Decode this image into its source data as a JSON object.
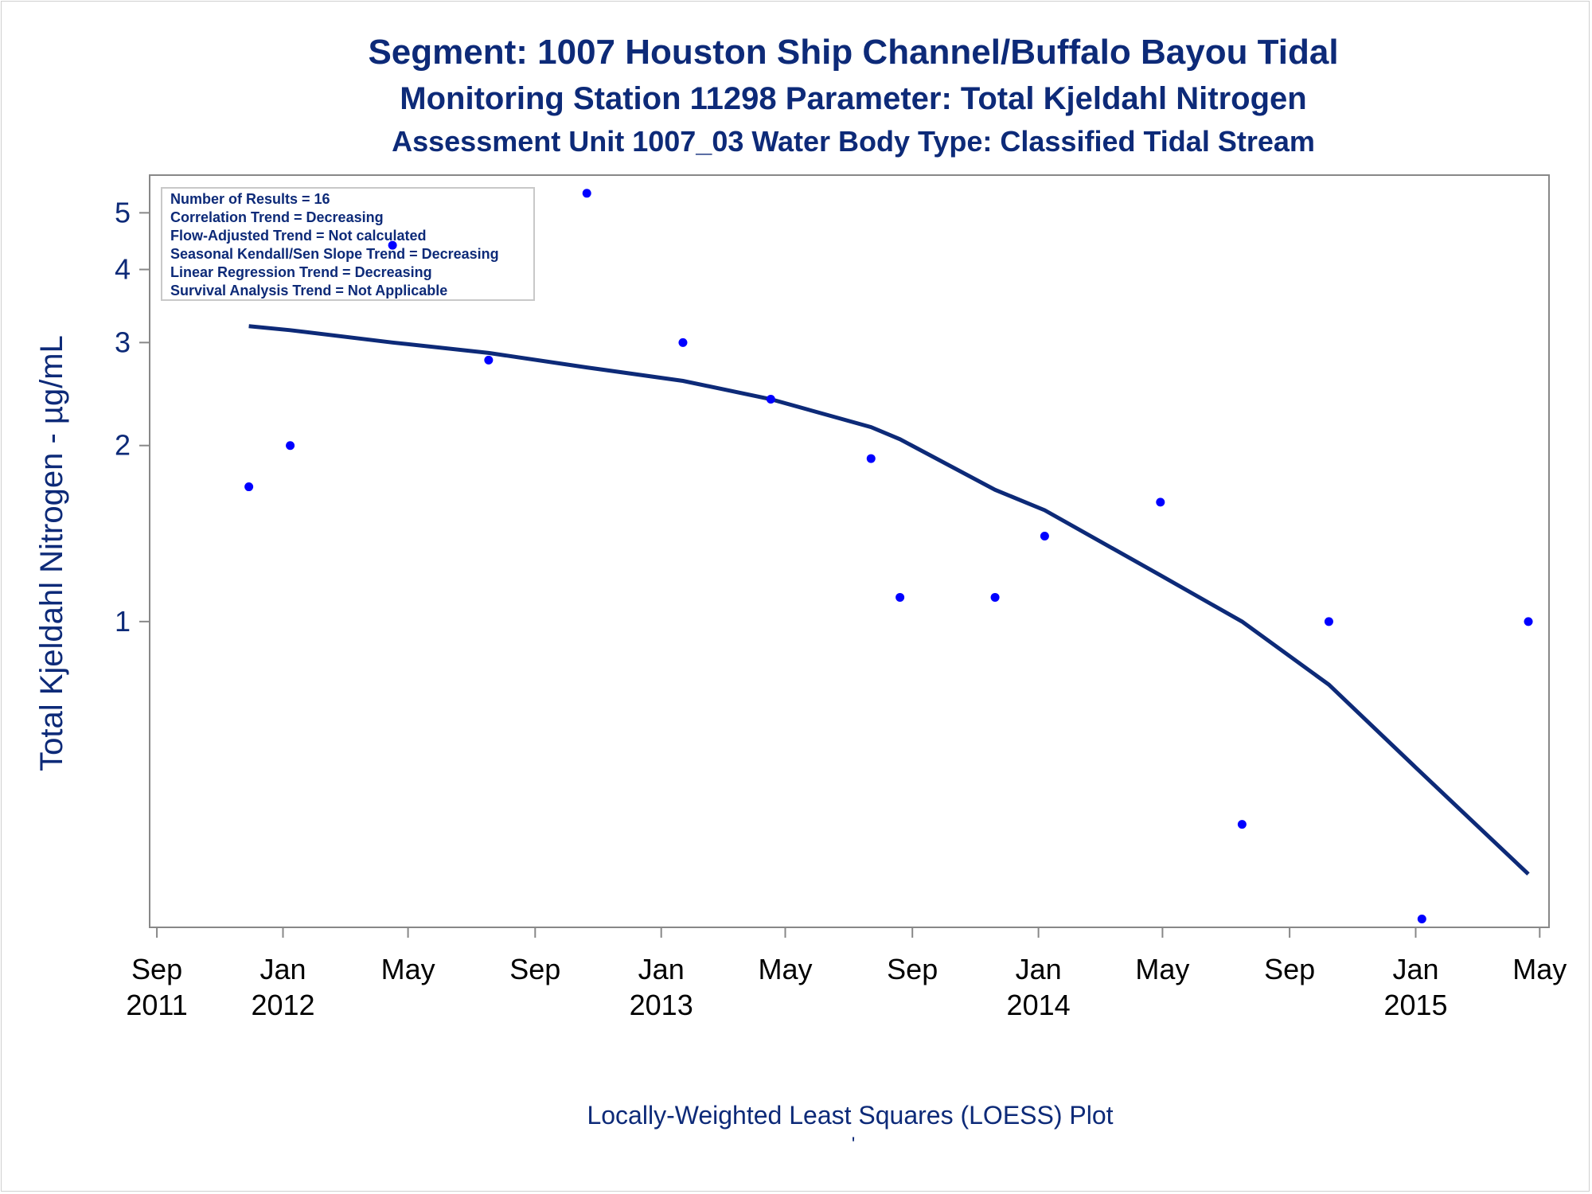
{
  "chart_data": {
    "type": "scatter",
    "title": "Segment: 1007  Houston Ship Channel/Buffalo Bayou Tidal",
    "subtitle": "Monitoring Station 11298 Parameter: Total Kjeldahl Nitrogen",
    "subtitle2": "Assessment Unit 1007_03   Water Body Type: Classified Tidal Stream",
    "xlabel": "Locally-Weighted Least Squares (LOESS) Plot",
    "ylabel": "Total Kjeldahl Nitrogen -  µg/mL",
    "footnote": "'",
    "y_scale": "log",
    "ylim": [
      0.3,
      5.8
    ],
    "xlim": [
      "2011-08-25",
      "2015-05-10"
    ],
    "y_ticks": [
      {
        "value": 1,
        "label": "1"
      },
      {
        "value": 2,
        "label": "2"
      },
      {
        "value": 3,
        "label": "3"
      },
      {
        "value": 4,
        "label": "4"
      },
      {
        "value": 5,
        "label": "5"
      }
    ],
    "x_ticks": [
      {
        "date": "2011-09-01",
        "line1": "Sep",
        "line2": "2011"
      },
      {
        "date": "2012-01-01",
        "line1": "Jan",
        "line2": "2012"
      },
      {
        "date": "2012-05-01",
        "line1": "May",
        "line2": ""
      },
      {
        "date": "2012-09-01",
        "line1": "Sep",
        "line2": ""
      },
      {
        "date": "2013-01-01",
        "line1": "Jan",
        "line2": "2013"
      },
      {
        "date": "2013-05-01",
        "line1": "May",
        "line2": ""
      },
      {
        "date": "2013-09-01",
        "line1": "Sep",
        "line2": ""
      },
      {
        "date": "2014-01-01",
        "line1": "Jan",
        "line2": "2014"
      },
      {
        "date": "2014-05-01",
        "line1": "May",
        "line2": ""
      },
      {
        "date": "2014-09-01",
        "line1": "Sep",
        "line2": ""
      },
      {
        "date": "2015-01-01",
        "line1": "Jan",
        "line2": "2015"
      },
      {
        "date": "2015-05-01",
        "line1": "May",
        "line2": ""
      }
    ],
    "series": [
      {
        "type": "scatter",
        "points": [
          {
            "x": "2011-11-29",
            "y": 1.7
          },
          {
            "x": "2012-01-08",
            "y": 2.0
          },
          {
            "x": "2012-04-16",
            "y": 4.4
          },
          {
            "x": "2012-07-18",
            "y": 2.8
          },
          {
            "x": "2012-10-21",
            "y": 5.4
          },
          {
            "x": "2013-01-22",
            "y": 3.0
          },
          {
            "x": "2013-04-17",
            "y": 2.4
          },
          {
            "x": "2013-07-23",
            "y": 1.9
          },
          {
            "x": "2013-08-20",
            "y": 1.1
          },
          {
            "x": "2013-11-20",
            "y": 1.1
          },
          {
            "x": "2014-01-07",
            "y": 1.4
          },
          {
            "x": "2014-04-29",
            "y": 1.6
          },
          {
            "x": "2014-07-17",
            "y": 0.45
          },
          {
            "x": "2014-10-09",
            "y": 1.0
          },
          {
            "x": "2015-01-07",
            "y": 0.31
          },
          {
            "x": "2015-04-20",
            "y": 1.0
          }
        ]
      },
      {
        "type": "line",
        "points": [
          {
            "x": "2011-11-29",
            "y": 3.2
          },
          {
            "x": "2012-01-08",
            "y": 3.15
          },
          {
            "x": "2012-04-16",
            "y": 3.0
          },
          {
            "x": "2012-07-18",
            "y": 2.88
          },
          {
            "x": "2012-10-21",
            "y": 2.72
          },
          {
            "x": "2013-01-22",
            "y": 2.58
          },
          {
            "x": "2013-04-17",
            "y": 2.4
          },
          {
            "x": "2013-07-23",
            "y": 2.15
          },
          {
            "x": "2013-08-20",
            "y": 2.05
          },
          {
            "x": "2013-11-20",
            "y": 1.68
          },
          {
            "x": "2014-01-07",
            "y": 1.55
          },
          {
            "x": "2014-04-29",
            "y": 1.2
          },
          {
            "x": "2014-07-17",
            "y": 1.0
          },
          {
            "x": "2014-10-09",
            "y": 0.78
          },
          {
            "x": "2015-01-07",
            "y": 0.55
          },
          {
            "x": "2015-04-20",
            "y": 0.37
          }
        ]
      }
    ],
    "annotations": [
      "Number of Results = 16",
      "Correlation Trend = Decreasing",
      "Flow-Adjusted Trend = Not calculated",
      "Seasonal Kendall/Sen Slope Trend = Decreasing",
      "Linear Regression Trend = Decreasing",
      "Survival Analysis Trend = Not Applicable"
    ],
    "grid": false,
    "legend": "none",
    "colors": {
      "points": "#0000ff",
      "curve": "#0d2a78",
      "text": "#0d2a78",
      "axis": "#888888"
    }
  }
}
